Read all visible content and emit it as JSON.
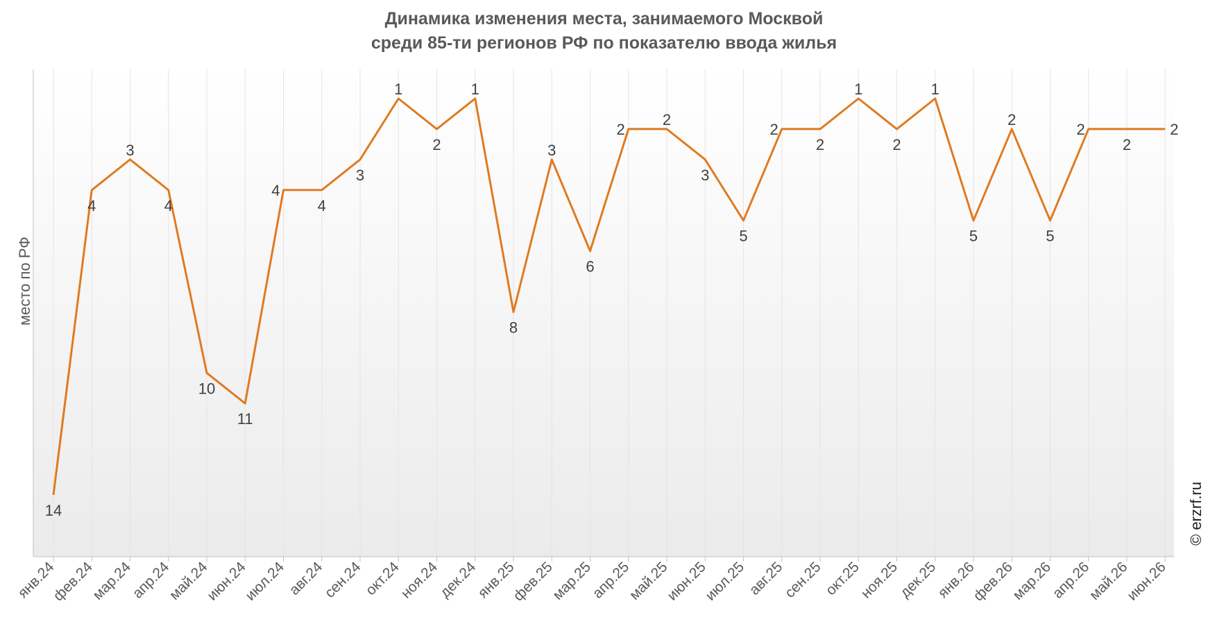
{
  "chart_data": {
    "type": "line",
    "title_lines": [
      "Динамика изменения места, занимаемого Москвой",
      "среди 85-ти регионов РФ по показателю ввода жилья"
    ],
    "ylabel": "место по РФ",
    "xlabel": "",
    "y_reversed": true,
    "ylim": [
      1,
      14
    ],
    "grid": true,
    "legend": "none",
    "line_color": "#E07A1F",
    "categories": [
      "янв.24",
      "фев.24",
      "мар.24",
      "апр.24",
      "май.24",
      "июн.24",
      "июл.24",
      "авг.24",
      "сен.24",
      "окт.24",
      "ноя.24",
      "дек.24",
      "янв.25",
      "фев.25",
      "мар.25",
      "апр.25",
      "май.25",
      "июн.25",
      "июл.25",
      "авг.25",
      "сен.25",
      "окт.25",
      "ноя.25",
      "дек.25",
      "янв.26",
      "фев.26",
      "мар.26",
      "апр.26",
      "май.26",
      "июн.26"
    ],
    "series": [
      {
        "values": [
          14,
          4,
          3,
          4,
          10,
          11,
          4,
          4,
          3,
          1,
          2,
          1,
          8,
          3,
          6,
          2,
          2,
          3,
          5,
          2,
          2,
          1,
          2,
          1,
          5,
          2,
          5,
          2,
          2,
          2
        ]
      }
    ]
  },
  "credit": "© erzrf.ru"
}
